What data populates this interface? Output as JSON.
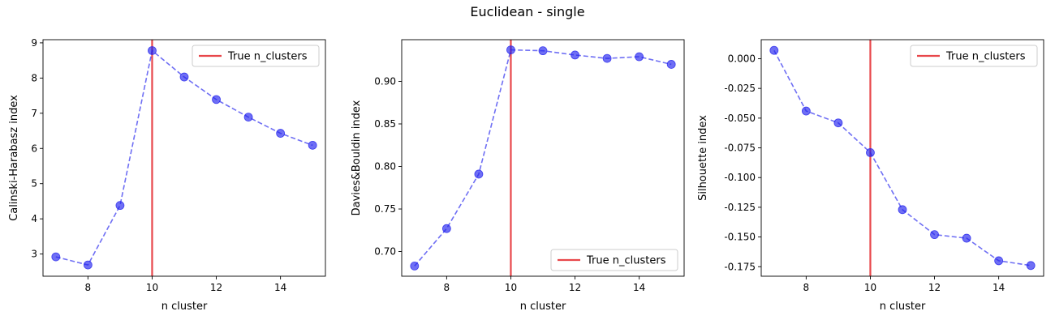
{
  "figure": {
    "title": "Euclidean - single"
  },
  "chart_data": [
    {
      "type": "line",
      "title": "",
      "xlabel": "n cluster",
      "ylabel": "Calinski-Harabasz index",
      "x": [
        7,
        8,
        9,
        10,
        11,
        12,
        13,
        14,
        15
      ],
      "series": [
        {
          "values": [
            2.92,
            2.69,
            4.38,
            8.78,
            8.03,
            7.39,
            6.89,
            6.43,
            6.09
          ]
        }
      ],
      "xlim": [
        6.6,
        15.4
      ],
      "ylim": [
        2.37,
        9.09
      ],
      "xticks": [
        8,
        10,
        12,
        14
      ],
      "yticks": [
        3,
        4,
        5,
        6,
        7,
        8,
        9
      ],
      "vline": {
        "x": 10,
        "label": "True n_clusters",
        "color": "#e8474b"
      },
      "legend": "top-right",
      "line_color": "#2222ee",
      "grid": false
    },
    {
      "type": "line",
      "title": "",
      "xlabel": "n cluster",
      "ylabel": "Davies&Bouldin index",
      "x": [
        7,
        8,
        9,
        10,
        11,
        12,
        13,
        14,
        15
      ],
      "series": [
        {
          "values": [
            0.683,
            0.727,
            0.791,
            0.937,
            0.936,
            0.931,
            0.927,
            0.929,
            0.92
          ]
        }
      ],
      "xlim": [
        6.6,
        15.4
      ],
      "ylim": [
        0.671,
        0.949
      ],
      "xticks": [
        8,
        10,
        12,
        14
      ],
      "yticks": [
        0.7,
        0.75,
        0.8,
        0.85,
        0.9
      ],
      "ytick_decimals": 2,
      "vline": {
        "x": 10,
        "label": "True n_clusters",
        "color": "#e8474b"
      },
      "legend": "bottom-right",
      "line_color": "#2222ee",
      "grid": false
    },
    {
      "type": "line",
      "title": "",
      "xlabel": "n cluster",
      "ylabel": "Silhouette index",
      "x": [
        7,
        8,
        9,
        10,
        11,
        12,
        13,
        14,
        15
      ],
      "series": [
        {
          "values": [
            0.007,
            -0.044,
            -0.054,
            -0.079,
            -0.127,
            -0.148,
            -0.151,
            -0.17,
            -0.174
          ]
        }
      ],
      "xlim": [
        6.6,
        15.4
      ],
      "ylim": [
        -0.183,
        0.016
      ],
      "xticks": [
        8,
        10,
        12,
        14
      ],
      "yticks": [
        0.0,
        -0.025,
        -0.05,
        -0.075,
        -0.1,
        -0.125,
        -0.15,
        -0.175
      ],
      "ytick_decimals": 3,
      "vline": {
        "x": 10,
        "label": "True n_clusters",
        "color": "#e8474b"
      },
      "legend": "top-right",
      "line_color": "#2222ee",
      "grid": false
    }
  ]
}
